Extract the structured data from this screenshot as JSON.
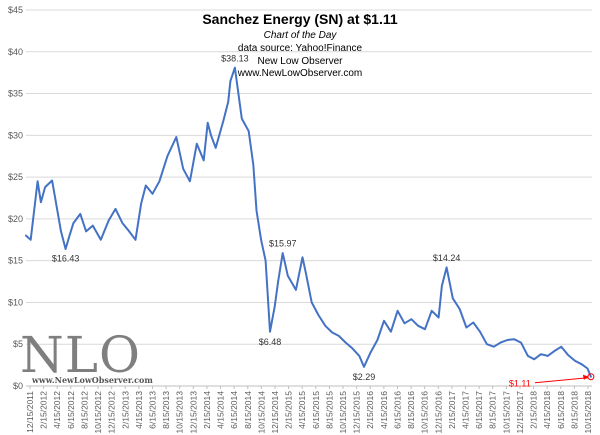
{
  "header": {
    "title": "Sanchez Energy (SN) at $1.11",
    "subtitle": "Chart of the Day",
    "source": "data source: Yahoo!Finance",
    "credit": "New Low Observer",
    "url": "www.NewLowObserver.com"
  },
  "watermark": {
    "logo_text": "NLO",
    "logo_url": "www.NewLowObserver.com"
  },
  "colors": {
    "series": "#4472c4",
    "grid": "#d9d9d9",
    "axis_text": "#595959",
    "current_annotation": "#ff0000"
  },
  "chart_data": {
    "type": "line",
    "title": "Sanchez Energy (SN) at $1.11",
    "xlabel": "",
    "ylabel": "",
    "ylim": [
      0,
      45
    ],
    "yticks": [
      0,
      5,
      10,
      15,
      20,
      25,
      30,
      35,
      40,
      45
    ],
    "ytick_labels": [
      "$0",
      "$5",
      "$10",
      "$15",
      "$20",
      "$25",
      "$30",
      "$35",
      "$40",
      "$45"
    ],
    "x_range": [
      "2011-12-15",
      "2018-11-30"
    ],
    "x_tick_labels": [
      "12/15/2011",
      "2/15/2012",
      "4/15/2012",
      "6/15/2012",
      "8/15/2012",
      "10/15/2012",
      "12/15/2012",
      "2/15/2013",
      "4/15/2013",
      "6/15/2013",
      "8/15/2013",
      "10/15/2013",
      "12/15/2013",
      "2/15/2014",
      "4/15/2014",
      "6/15/2014",
      "8/15/2014",
      "10/15/2014",
      "12/15/2014",
      "2/15/2015",
      "4/15/2015",
      "6/15/2015",
      "8/15/2015",
      "10/15/2015",
      "12/15/2015",
      "2/15/2016",
      "4/15/2016",
      "6/15/2016",
      "8/15/2016",
      "10/15/2016",
      "12/15/2016",
      "2/15/2017",
      "4/15/2017",
      "6/15/2017",
      "8/15/2017",
      "10/15/2017",
      "12/15/2017",
      "2/15/2018",
      "4/15/2018",
      "6/15/2018",
      "8/15/2018",
      "10/15/2018"
    ],
    "grid": true,
    "legend": "none",
    "series": [
      {
        "color": "#4472c4",
        "x": [
          "2011-12-15",
          "2012-01-05",
          "2012-02-05",
          "2012-02-20",
          "2012-03-10",
          "2012-04-10",
          "2012-05-20",
          "2012-06-10",
          "2012-06-25",
          "2012-07-15",
          "2012-08-15",
          "2012-09-10",
          "2012-10-10",
          "2012-11-15",
          "2012-12-20",
          "2013-01-20",
          "2013-02-20",
          "2013-03-20",
          "2013-04-20",
          "2013-05-15",
          "2013-06-05",
          "2013-07-05",
          "2013-08-05",
          "2013-09-10",
          "2013-10-20",
          "2013-11-20",
          "2013-12-20",
          "2014-01-20",
          "2014-02-20",
          "2014-03-10",
          "2014-03-25",
          "2014-04-15",
          "2014-05-20",
          "2014-06-10",
          "2014-06-20",
          "2014-07-10",
          "2014-08-10",
          "2014-09-10",
          "2014-10-01",
          "2014-10-15",
          "2014-11-05",
          "2014-11-25",
          "2014-12-15",
          "2015-01-05",
          "2015-01-20",
          "2015-02-10",
          "2015-03-05",
          "2015-04-10",
          "2015-05-10",
          "2015-05-25",
          "2015-06-20",
          "2015-07-20",
          "2015-08-20",
          "2015-09-20",
          "2015-10-20",
          "2015-11-20",
          "2015-12-20",
          "2016-01-20",
          "2016-02-10",
          "2016-03-10",
          "2016-04-10",
          "2016-05-10",
          "2016-06-10",
          "2016-07-10",
          "2016-08-10",
          "2016-09-10",
          "2016-10-10",
          "2016-11-10",
          "2016-12-10",
          "2017-01-10",
          "2017-01-25",
          "2017-02-15",
          "2017-03-15",
          "2017-04-15",
          "2017-05-15",
          "2017-06-15",
          "2017-07-15",
          "2017-08-15",
          "2017-09-15",
          "2017-10-15",
          "2017-11-15",
          "2017-12-15",
          "2018-01-15",
          "2018-02-15",
          "2018-03-15",
          "2018-04-15",
          "2018-05-15",
          "2018-06-15",
          "2018-07-15",
          "2018-08-15",
          "2018-09-15",
          "2018-10-15",
          "2018-11-10",
          "2018-11-25"
        ],
        "y": [
          18.0,
          17.5,
          24.5,
          22.0,
          23.8,
          24.6,
          18.5,
          16.4,
          17.8,
          19.5,
          20.6,
          18.5,
          19.2,
          17.5,
          19.8,
          21.2,
          19.5,
          18.6,
          17.5,
          21.8,
          24.0,
          23.0,
          24.5,
          27.5,
          29.8,
          26.0,
          24.5,
          29.0,
          27.0,
          31.5,
          30.0,
          28.5,
          31.8,
          34.0,
          36.5,
          38.1,
          32.0,
          30.5,
          26.5,
          21.0,
          17.5,
          15.0,
          6.5,
          9.5,
          12.5,
          15.9,
          13.2,
          11.5,
          15.4,
          13.5,
          10.0,
          8.5,
          7.2,
          6.4,
          6.0,
          5.2,
          4.5,
          3.6,
          2.3,
          4.0,
          5.5,
          7.8,
          6.5,
          9.0,
          7.5,
          8.0,
          7.2,
          6.8,
          9.0,
          8.2,
          12.0,
          14.2,
          10.5,
          9.2,
          7.0,
          7.6,
          6.5,
          5.0,
          4.7,
          5.2,
          5.5,
          5.6,
          5.2,
          3.6,
          3.2,
          3.8,
          3.6,
          4.2,
          4.7,
          3.7,
          3.0,
          2.6,
          2.1,
          1.11
        ]
      }
    ],
    "annotations": [
      {
        "label": "$16.43",
        "x": "2012-06-10",
        "y": 16.43,
        "position": "below"
      },
      {
        "label": "$38.13",
        "x": "2014-07-10",
        "y": 38.13,
        "position": "above"
      },
      {
        "label": "$6.48",
        "x": "2014-12-15",
        "y": 6.48,
        "position": "below"
      },
      {
        "label": "$15.97",
        "x": "2015-02-10",
        "y": 15.97,
        "position": "above"
      },
      {
        "label": "$2.29",
        "x": "2016-02-10",
        "y": 2.29,
        "position": "below"
      },
      {
        "label": "$14.24",
        "x": "2017-02-15",
        "y": 14.24,
        "position": "above"
      },
      {
        "label": "$1.11",
        "x": "2018-11-25",
        "y": 1.11,
        "position": "left",
        "arrow": true
      }
    ]
  }
}
